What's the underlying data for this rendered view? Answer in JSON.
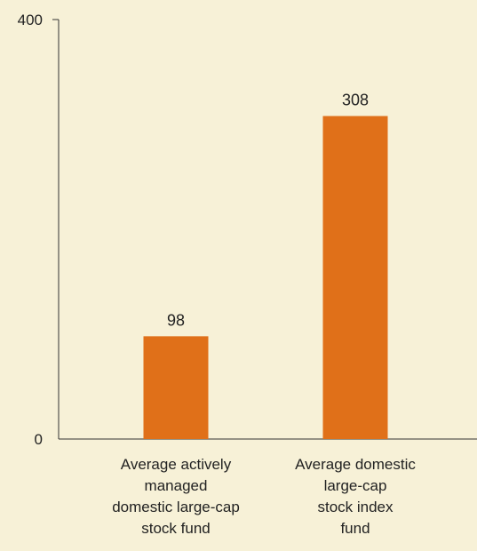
{
  "chart_data": {
    "type": "bar",
    "categories": [
      [
        "Average actively",
        "managed",
        "domestic large-cap",
        "stock fund"
      ],
      [
        "Average domestic",
        "large-cap",
        "stock index",
        "fund"
      ]
    ],
    "values": [
      98,
      308
    ],
    "value_labels": [
      "98",
      "308"
    ],
    "yticks": [
      0,
      400
    ],
    "ytick_labels": [
      "0",
      "400"
    ],
    "ylim": [
      0,
      400
    ],
    "grid": false,
    "legend": "none",
    "title": "",
    "xlabel": "",
    "ylabel": ""
  },
  "colors": {
    "background": "#f7f1d7",
    "bar": "#e07019",
    "axis": "#333333",
    "text": "#222222"
  }
}
